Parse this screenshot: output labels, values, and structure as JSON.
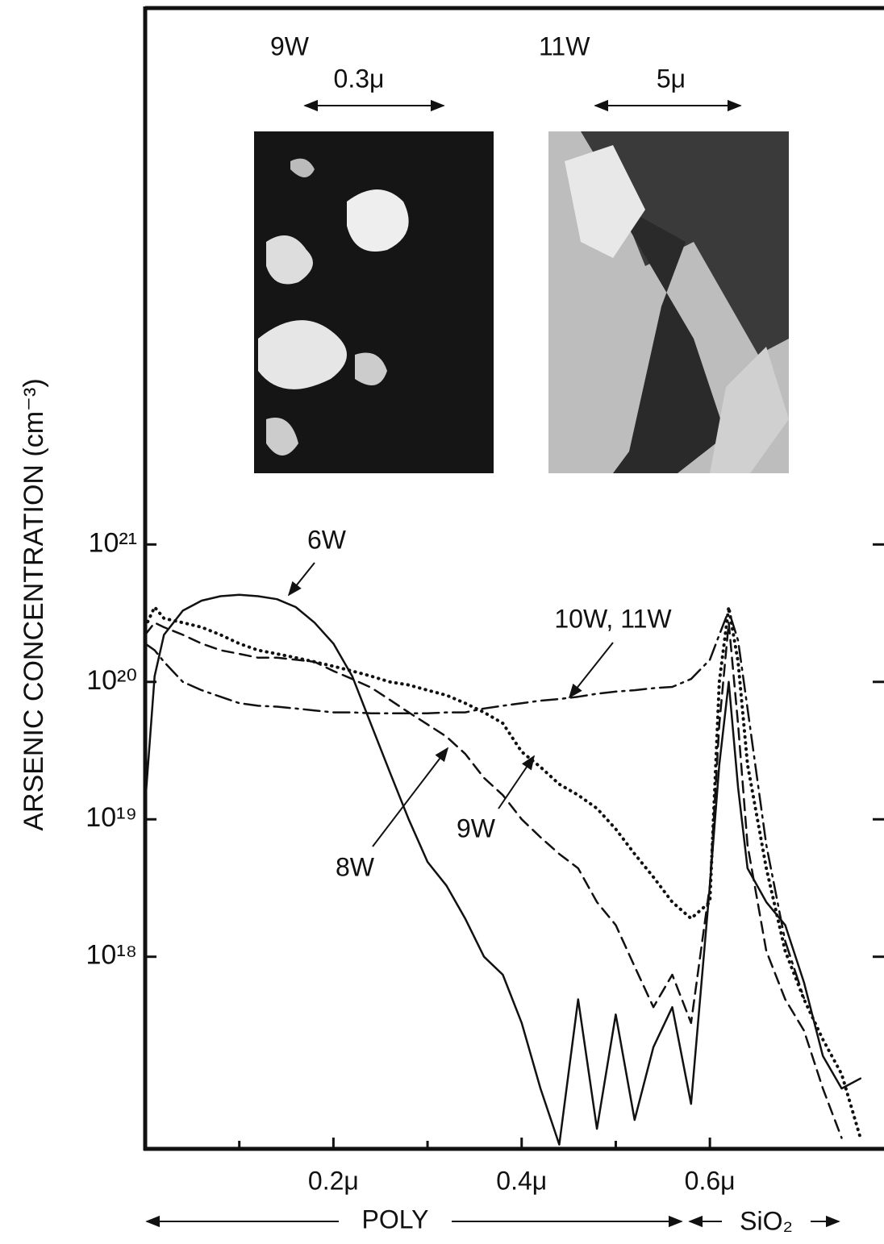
{
  "chart_data": {
    "type": "line",
    "y_label": "ARSENIC CONCENTRATION (cm⁻³)",
    "y_scale": "log",
    "grid": false,
    "xlim": [
      0,
      0.785
    ],
    "xticks": [
      {
        "value": 0.2,
        "label": "0.2μ"
      },
      {
        "value": 0.4,
        "label": "0.4μ"
      },
      {
        "value": 0.6,
        "label": "0.6μ"
      }
    ],
    "xminor_ticks": [
      0.1,
      0.3,
      0.5
    ],
    "ylim": [
      4e+16,
      8e+24
    ],
    "yticks": [
      {
        "value": 1e+18,
        "label": "10¹⁸"
      },
      {
        "value": 1e+19,
        "label": "10¹⁹"
      },
      {
        "value": 1e+20,
        "label": "10²⁰"
      },
      {
        "value": 1e+21,
        "label": "10²¹"
      }
    ],
    "x": [
      0,
      0.01,
      0.02,
      0.04,
      0.06,
      0.08,
      0.1,
      0.12,
      0.14,
      0.16,
      0.18,
      0.2,
      0.22,
      0.24,
      0.26,
      0.28,
      0.3,
      0.32,
      0.34,
      0.36,
      0.38,
      0.4,
      0.42,
      0.44,
      0.46,
      0.48,
      0.5,
      0.52,
      0.54,
      0.56,
      0.58,
      0.6,
      0.61,
      0.62,
      0.63,
      0.64,
      0.66,
      0.68,
      0.7,
      0.72,
      0.74,
      0.76
    ],
    "series": [
      {
        "name": "6W",
        "color": "#111111",
        "line_style": "solid",
        "values": [
          1.3e+19,
          1.1e+20,
          2.2e+20,
          3.3e+20,
          3.9e+20,
          4.2e+20,
          4.3e+20,
          4.2e+20,
          4e+20,
          3.5e+20,
          2.7e+20,
          1.9e+20,
          1.1e+20,
          4.9e+19,
          2.2e+19,
          1e+19,
          4.9e+18,
          3.3e+18,
          1.9e+18,
          1e+18,
          7.4e+17,
          3.3e+17,
          1.1e+17,
          4.3e+16,
          4.9e+17,
          5.6e+16,
          3.8e+17,
          6.5e+16,
          2.2e+17,
          4.3e+17,
          8.5e+16,
          3.3e+18,
          2.5e+19,
          1e+20,
          1.7e+19,
          4.4e+18,
          2.5e+18,
          1.7e+18,
          6.5e+17,
          1.9e+17,
          1.1e+17,
          1.3e+17
        ]
      },
      {
        "name": "8W",
        "color": "#111111",
        "line_style": "dashed",
        "values": [
          2.2e+20,
          2.7e+20,
          2.5e+20,
          2.2e+20,
          1.9e+20,
          1.7e+20,
          1.6e+20,
          1.5e+20,
          1.5e+20,
          1.45e+20,
          1.4e+20,
          1.2e+20,
          1.05e+20,
          9.1e+19,
          7.4e+19,
          6e+19,
          4.9e+19,
          4e+19,
          3e+19,
          2e+19,
          1.5e+19,
          1e+19,
          7.4e+18,
          5.6e+18,
          4.4e+18,
          2.5e+18,
          1.7e+18,
          8.5e+17,
          4.3e+17,
          7.4e+17,
          3.3e+17,
          3.3e+18,
          4.9e+19,
          2.7e+20,
          4.9e+19,
          6.5e+18,
          1.1e+18,
          4.9e+17,
          2.9e+17,
          1.1e+17,
          4.8e+16,
          null
        ]
      },
      {
        "name": "9W",
        "color": "#111111",
        "line_style": "dotted",
        "values": [
          2.5e+20,
          3.5e+20,
          2.9e+20,
          2.7e+20,
          2.5e+20,
          2.2e+20,
          1.9e+20,
          1.7e+20,
          1.6e+20,
          1.5e+20,
          1.4e+20,
          1.3e+20,
          1.2e+20,
          1.1e+20,
          1e+20,
          9.5e+19,
          8.7e+19,
          8e+19,
          7e+19,
          6e+19,
          5e+19,
          3.1e+19,
          2.4e+19,
          1.8e+19,
          1.5e+19,
          1.2e+19,
          8.5e+18,
          5.6e+18,
          3.8e+18,
          2.5e+18,
          1.9e+18,
          2.5e+18,
          1e+20,
          3.5e+20,
          1.4e+20,
          2.5e+19,
          4.4e+18,
          1.1e+18,
          4.9e+17,
          2.5e+17,
          1.4e+17,
          4.8e+16
        ]
      },
      {
        "name": "10W, 11W",
        "color": "#111111",
        "line_style": "dashdot",
        "values": [
          1.9e+20,
          1.7e+20,
          1.4e+20,
          1e+20,
          8.7e+19,
          7.8e+19,
          7e+19,
          6.7e+19,
          6.6e+19,
          6.4e+19,
          6.2e+19,
          6e+19,
          6e+19,
          5.9e+19,
          5.9e+19,
          5.9e+19,
          5.9e+19,
          6e+19,
          6e+19,
          6.4e+19,
          6.7e+19,
          7e+19,
          7.3e+19,
          7.5e+19,
          7.8e+19,
          8.2e+19,
          8.5e+19,
          8.7e+19,
          9e+19,
          9.2e+19,
          1.05e+20,
          1.45e+20,
          2.2e+20,
          3.3e+20,
          2e+20,
          6.4e+19,
          6.5e+18,
          1.3e+18,
          5e+17,
          null,
          null,
          null
        ]
      }
    ],
    "insets": [
      {
        "label": "9W",
        "scale": "0.3μ"
      },
      {
        "label": "11W",
        "scale": "5μ"
      }
    ],
    "regions": [
      "POLY",
      "SiO₂"
    ]
  }
}
